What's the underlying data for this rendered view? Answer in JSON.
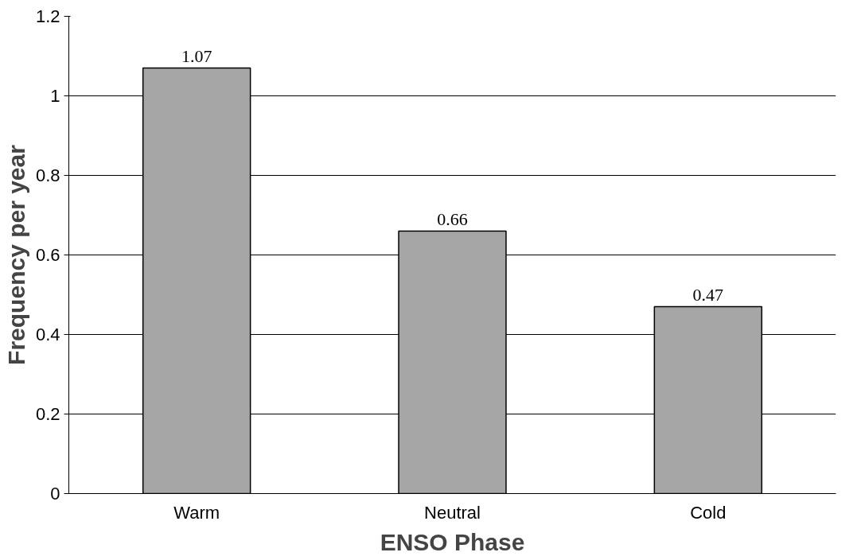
{
  "chart_data": {
    "type": "bar",
    "xlabel": "ENSO Phase",
    "ylabel": "Frequency per year",
    "categories": [
      "Warm",
      "Neutral",
      "Cold"
    ],
    "values": [
      1.07,
      0.66,
      0.47
    ],
    "color": "#a6a6a6",
    "ylim": [
      0,
      1.2
    ],
    "yticks": [
      0,
      0.2,
      0.4,
      0.6,
      0.8,
      1,
      1.2
    ],
    "grid": "y",
    "data_labels": true
  }
}
